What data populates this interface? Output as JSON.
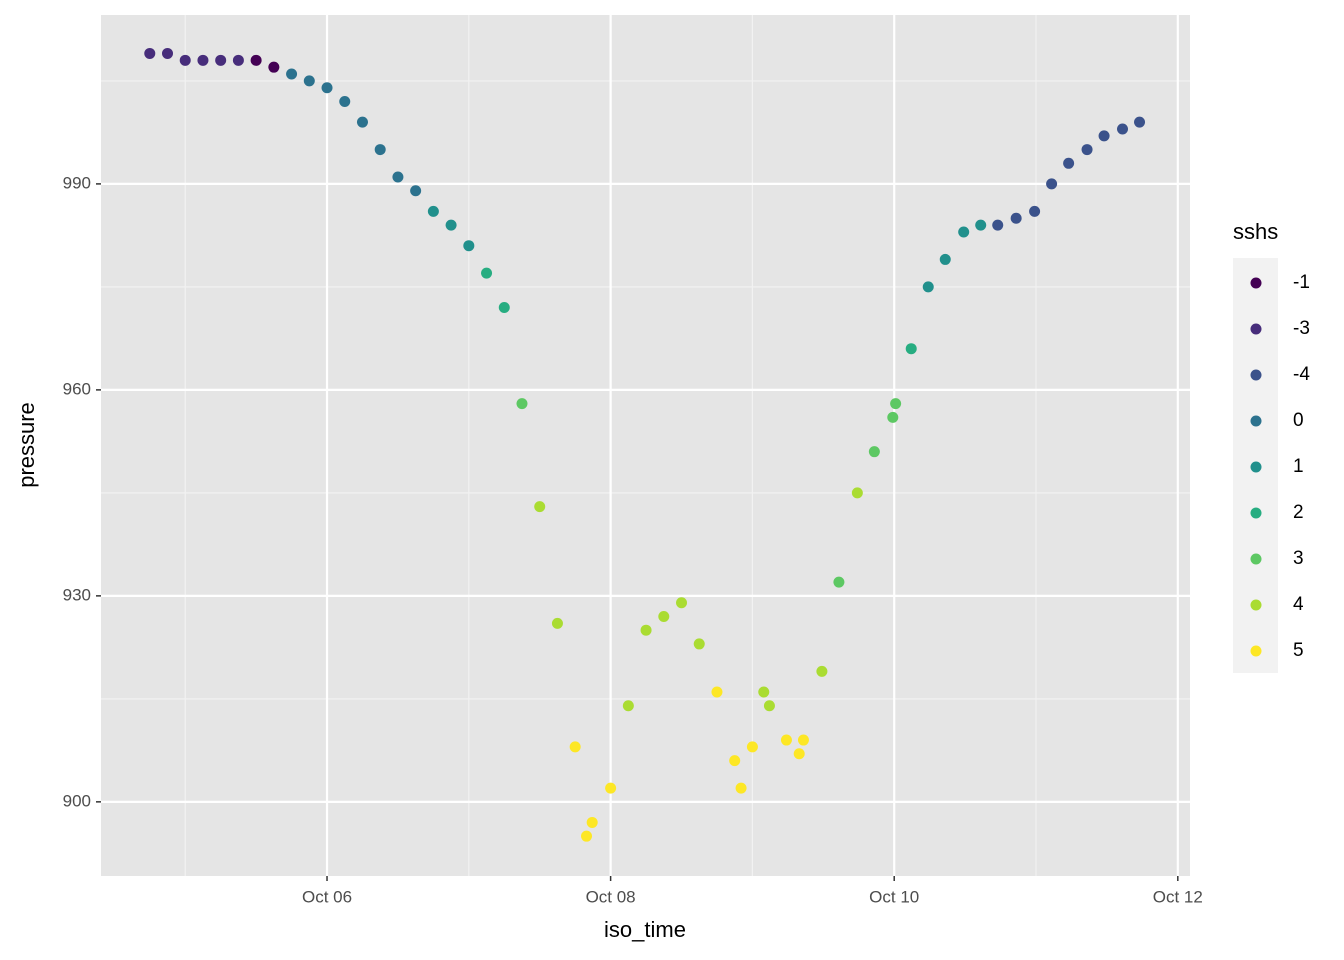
{
  "chart_data": {
    "type": "scatter",
    "x_label": "iso_time",
    "y_label": "pressure",
    "legend_title": "sshs",
    "xlim": [
      4.406,
      12.086
    ],
    "ylim": [
      889.2,
      1014.6
    ],
    "xticks": [
      {
        "value": 6,
        "label": "Oct 06"
      },
      {
        "value": 8,
        "label": "Oct 08"
      },
      {
        "value": 10,
        "label": "Oct 10"
      },
      {
        "value": 12,
        "label": "Oct 12"
      }
    ],
    "yticks": [
      900,
      930,
      960,
      990
    ],
    "grid": true,
    "legend": "right",
    "series": [
      {
        "name": "-1",
        "color": "#440154",
        "x": [
          5.5,
          5.625
        ],
        "values": [
          1008,
          1007
        ]
      },
      {
        "name": "-3",
        "color": "#472D7B",
        "x": [
          4.75,
          4.875,
          5.0,
          5.125,
          5.25,
          5.375
        ],
        "values": [
          1009,
          1009,
          1008,
          1008,
          1008,
          1008
        ]
      },
      {
        "name": "-4",
        "color": "#3B528B",
        "x": [
          10.73,
          10.86,
          10.99,
          11.11,
          11.23,
          11.36,
          11.48,
          11.61,
          11.73
        ],
        "values": [
          984,
          985,
          986,
          990,
          993,
          995,
          997,
          998,
          999
        ]
      },
      {
        "name": "0",
        "color": "#2C728E",
        "x": [
          5.75,
          5.875,
          6.0,
          6.125,
          6.25,
          6.375,
          6.5,
          6.625
        ],
        "values": [
          1006,
          1005,
          1004,
          1002,
          999,
          995,
          991,
          989
        ]
      },
      {
        "name": "1",
        "color": "#21908C",
        "x": [
          6.75,
          6.875,
          7.0,
          10.24,
          10.36,
          10.49,
          10.61
        ],
        "values": [
          986,
          984,
          981,
          975,
          979,
          983,
          984
        ]
      },
      {
        "name": "2",
        "color": "#27AD81",
        "x": [
          7.125,
          7.25,
          10.12
        ],
        "values": [
          977,
          972,
          966
        ]
      },
      {
        "name": "3",
        "color": "#5DC863",
        "x": [
          7.375,
          9.61,
          9.86,
          9.99,
          10.01
        ],
        "values": [
          958,
          932,
          951,
          956,
          958
        ]
      },
      {
        "name": "4",
        "color": "#AADC32",
        "x": [
          7.5,
          7.625,
          8.125,
          8.25,
          8.375,
          8.5,
          8.625,
          9.08,
          9.12,
          9.49,
          9.74
        ],
        "values": [
          943,
          926,
          914,
          925,
          927,
          929,
          923,
          916,
          914,
          919,
          945
        ]
      },
      {
        "name": "5",
        "color": "#FDE725",
        "x": [
          7.75,
          7.83,
          7.87,
          8.0,
          8.75,
          8.875,
          8.92,
          9.0,
          9.24,
          9.33,
          9.36
        ],
        "values": [
          908,
          895,
          897,
          902,
          916,
          906,
          902,
          908,
          909,
          907,
          909
        ]
      }
    ]
  }
}
